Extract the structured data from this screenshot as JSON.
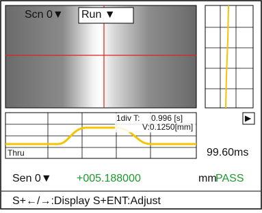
{
  "screen": {
    "scene_label": "Scn 0▼",
    "mode_select": "Run ▼",
    "wave": {
      "div_time_label": "1div T:",
      "div_time_value": "0.996 [s]",
      "div_volt": "V:0.1250[mm]",
      "trigger_mode": "Thru"
    },
    "play_button": "▶",
    "cycle_time": "99.60ms",
    "status": {
      "sensor_label": "Sen 0▼",
      "measured_value": "+005.188000",
      "unit": "mm",
      "judgement": "PASS"
    },
    "help_text": "S+←/→:Display S+ENT:Adjust"
  }
}
